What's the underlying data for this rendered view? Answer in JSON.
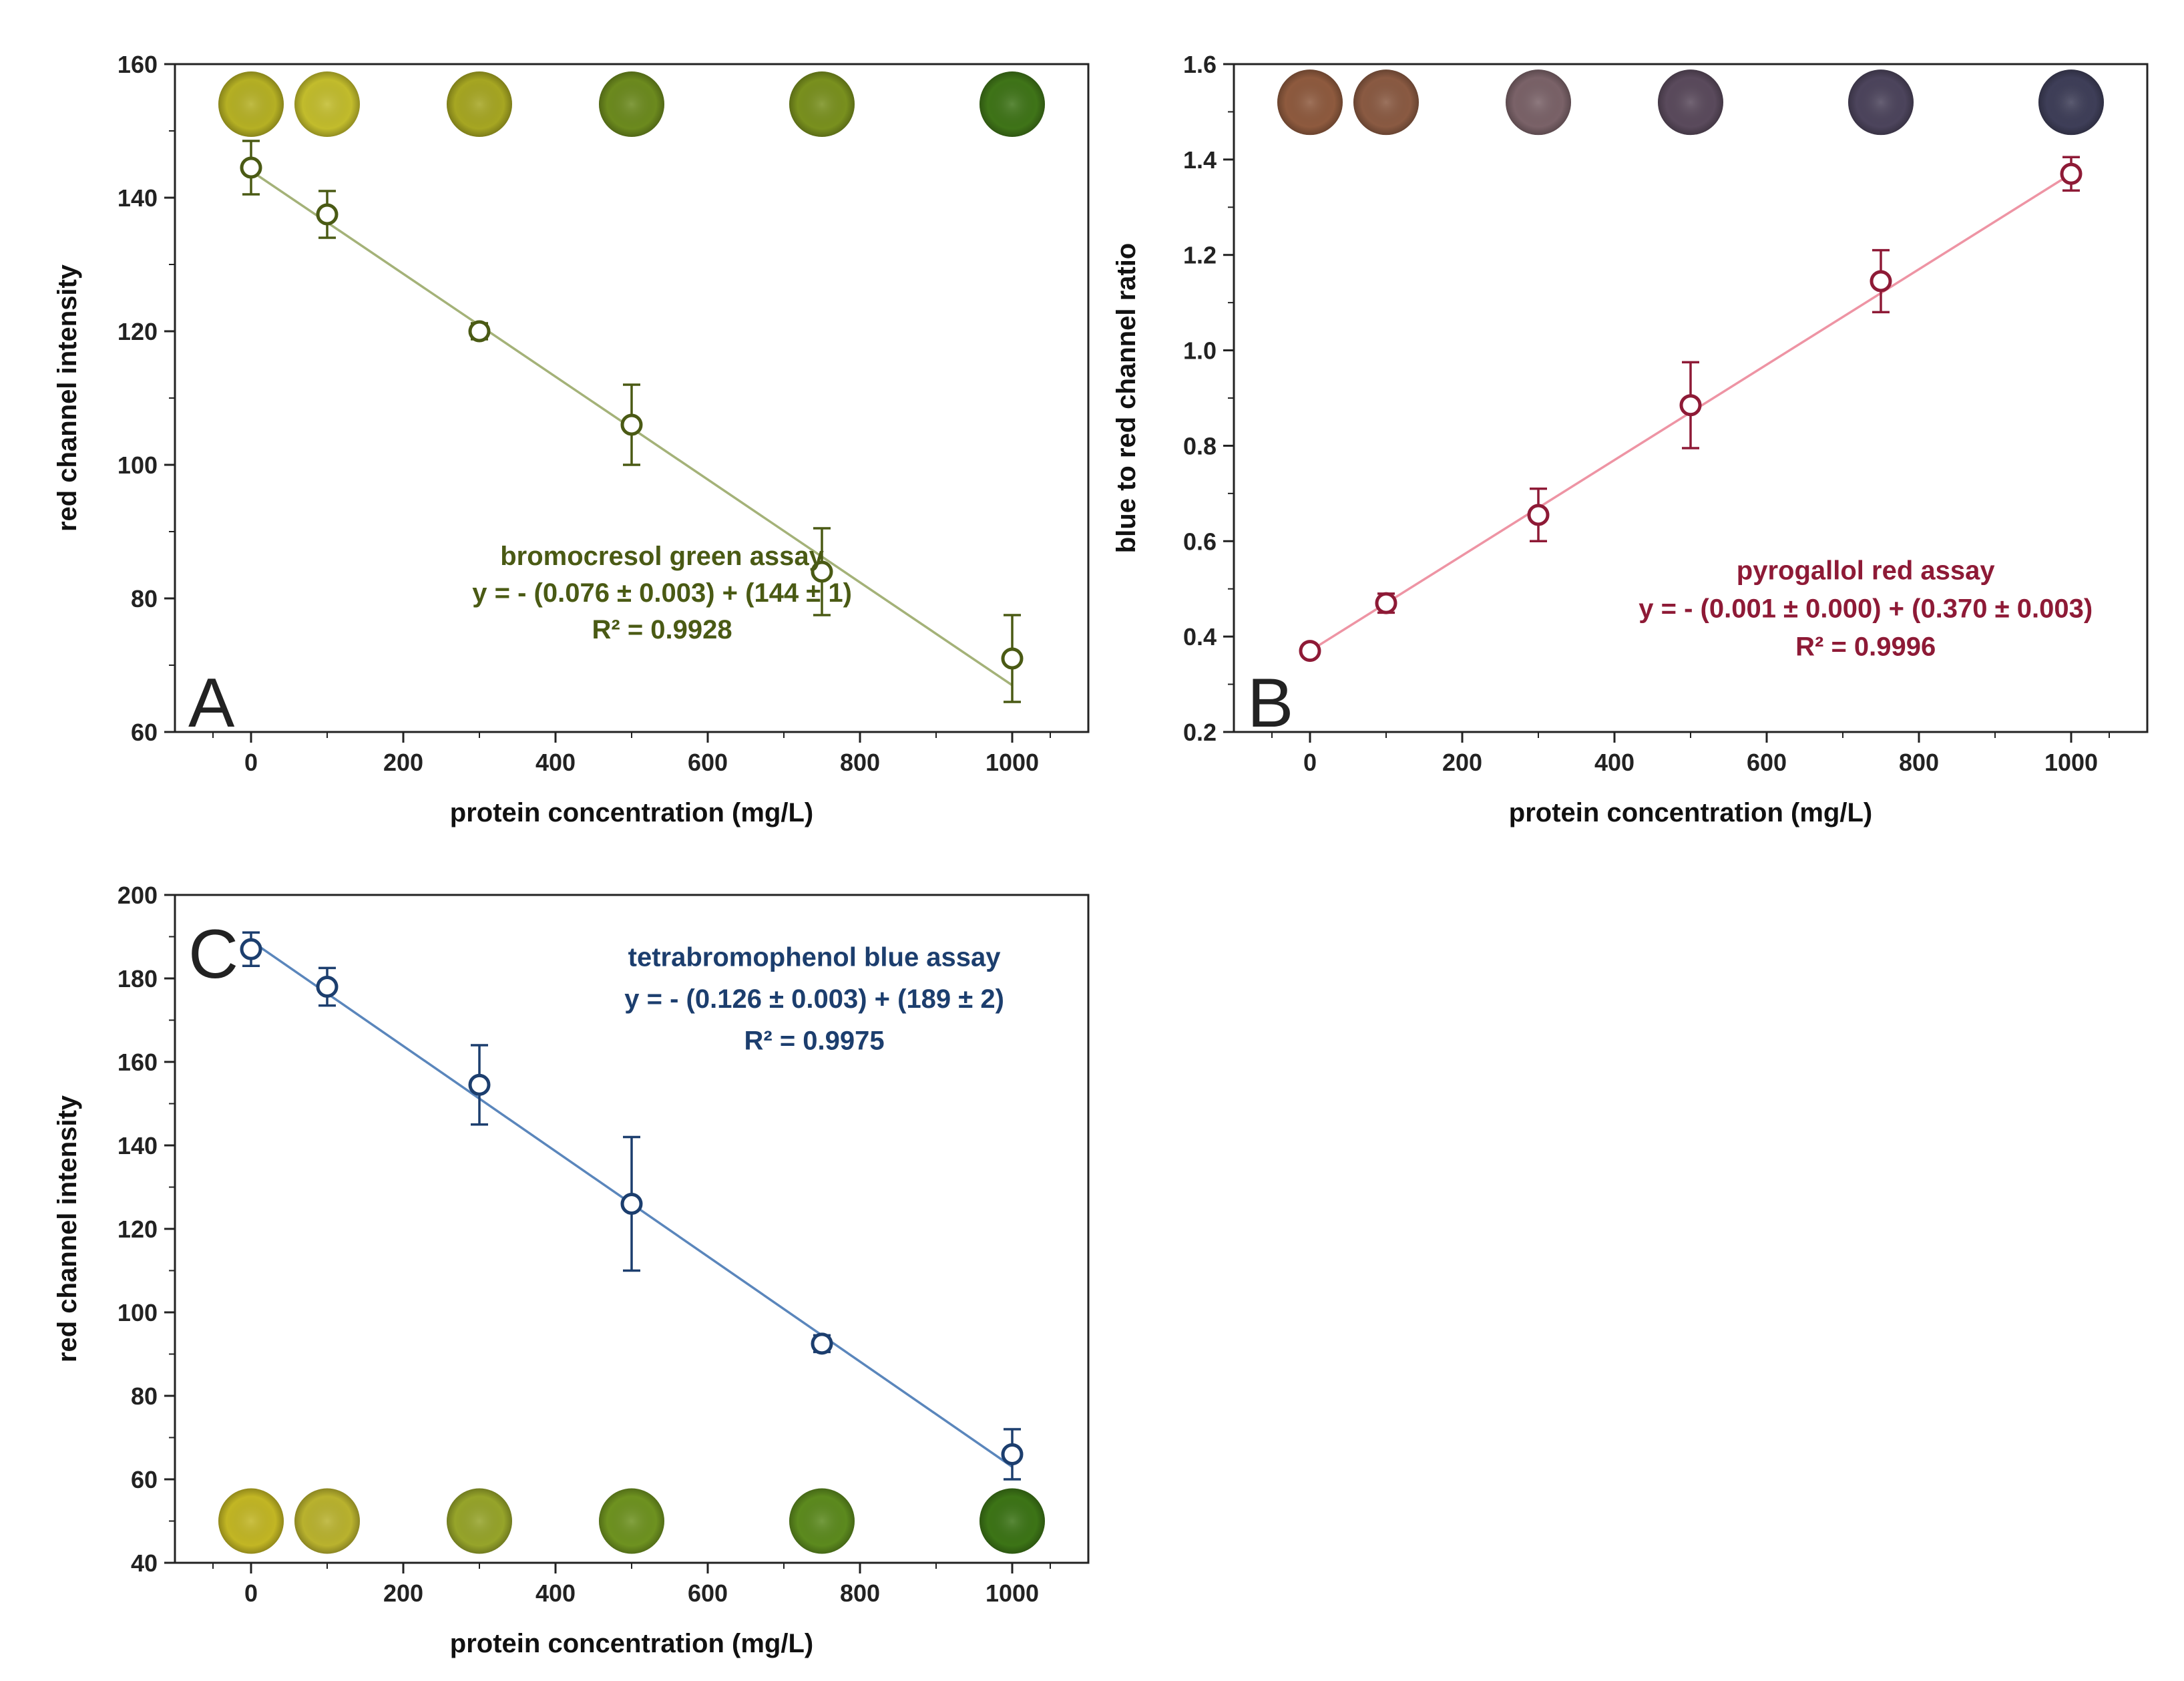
{
  "figure": {
    "panels": [
      "A",
      "B",
      "C"
    ]
  },
  "chart_data": [
    {
      "type": "scatter",
      "panel": "A",
      "title": "",
      "xlabel": "protein concentration (mg/L)",
      "ylabel": "red channel intensity",
      "xlim": [
        -100,
        1100
      ],
      "ylim": [
        60,
        160
      ],
      "xticks": [
        0,
        200,
        400,
        600,
        800,
        1000
      ],
      "yticks": [
        60,
        80,
        100,
        120,
        140,
        160
      ],
      "color": "#4a5a14",
      "fit_color": "#a4b278",
      "grid": false,
      "series": [
        {
          "name": "bromocresol green assay",
          "x": [
            0,
            100,
            300,
            500,
            750,
            1000
          ],
          "y": [
            144.5,
            137.5,
            120,
            106,
            84,
            71
          ],
          "error": [
            4,
            3.5,
            1.2,
            6,
            6.5,
            6.5
          ]
        }
      ],
      "fit": {
        "x": [
          0,
          1000
        ],
        "y": [
          144,
          67
        ]
      },
      "annotations": [
        "bromocresol green assay",
        "y = - (0.076 ± 0.003) + (144 ± 1)",
        "R² = 0.9928"
      ],
      "annotation_center_x": 540,
      "annotation_y": [
        85,
        79.5,
        74
      ],
      "swatches": {
        "x": [
          0,
          100,
          300,
          500,
          750,
          1000
        ],
        "y": 154,
        "colors": [
          "#b5b024",
          "#c2bc2c",
          "#a6a622",
          "#6c8a1e",
          "#79901e",
          "#3f7418"
        ]
      }
    },
    {
      "type": "scatter",
      "panel": "B",
      "title": "",
      "xlabel": "protein concentration (mg/L)",
      "ylabel": "blue to red channel ratio",
      "xlim": [
        -100,
        1100
      ],
      "ylim": [
        0.2,
        1.6
      ],
      "xticks": [
        0,
        200,
        400,
        600,
        800,
        1000
      ],
      "yticks": [
        0.2,
        0.4,
        0.6,
        0.8,
        1.0,
        1.2,
        1.4,
        1.6
      ],
      "ytick_labels": [
        "0.2",
        "0.4",
        "0.6",
        "0.8",
        "1.0",
        "1.2",
        "1.4",
        "1.6"
      ],
      "color": "#8e1a36",
      "fit_color": "#ee94a4",
      "grid": false,
      "series": [
        {
          "name": "pyrogallol red assay",
          "x": [
            0,
            100,
            300,
            500,
            750,
            1000
          ],
          "y": [
            0.37,
            0.47,
            0.655,
            0.885,
            1.145,
            1.37
          ],
          "error": [
            0.01,
            0.02,
            0.055,
            0.09,
            0.065,
            0.035
          ]
        }
      ],
      "fit": {
        "x": [
          0,
          1000
        ],
        "y": [
          0.37,
          1.37
        ]
      },
      "annotations": [
        "pyrogallol red assay",
        "y = - (0.001 ± 0.000) + (0.370 ± 0.003)",
        "R² = 0.9996"
      ],
      "annotation_center_x": 730,
      "annotation_y": [
        0.52,
        0.44,
        0.36
      ],
      "swatches": {
        "x": [
          0,
          100,
          300,
          500,
          750,
          1000
        ],
        "y": 1.52,
        "colors": [
          "#8e5a3e",
          "#8a5a42",
          "#7a6268",
          "#5a4a5c",
          "#4c445c",
          "#3e3e58"
        ]
      }
    },
    {
      "type": "scatter",
      "panel": "C",
      "title": "",
      "xlabel": "protein concentration (mg/L)",
      "ylabel": "red channel intensity",
      "xlim": [
        -100,
        1100
      ],
      "ylim": [
        40,
        200
      ],
      "xticks": [
        0,
        200,
        400,
        600,
        800,
        1000
      ],
      "yticks": [
        40,
        60,
        80,
        100,
        120,
        140,
        160,
        180,
        200
      ],
      "color": "#1c3e6e",
      "fit_color": "#5a86bc",
      "grid": false,
      "series": [
        {
          "name": "tetrabromophenol blue assay",
          "x": [
            0,
            100,
            300,
            500,
            750,
            1000
          ],
          "y": [
            187,
            178,
            154.5,
            126,
            92.5,
            66
          ],
          "error": [
            4,
            4.5,
            9.5,
            16,
            2,
            6
          ]
        }
      ],
      "fit": {
        "x": [
          0,
          1000
        ],
        "y": [
          189,
          63
        ]
      },
      "annotations": [
        "tetrabromophenol blue assay",
        "y = - (0.126 ± 0.003) + (189 ± 2)",
        "R² = 0.9975"
      ],
      "annotation_center_x": 740,
      "annotation_y": [
        183,
        173,
        163
      ],
      "swatches": {
        "x": [
          0,
          100,
          300,
          500,
          750,
          1000
        ],
        "y": 50,
        "colors": [
          "#c2b624",
          "#b9b22e",
          "#96a42a",
          "#6e9220",
          "#5c8a1e",
          "#3c7416"
        ]
      }
    }
  ]
}
